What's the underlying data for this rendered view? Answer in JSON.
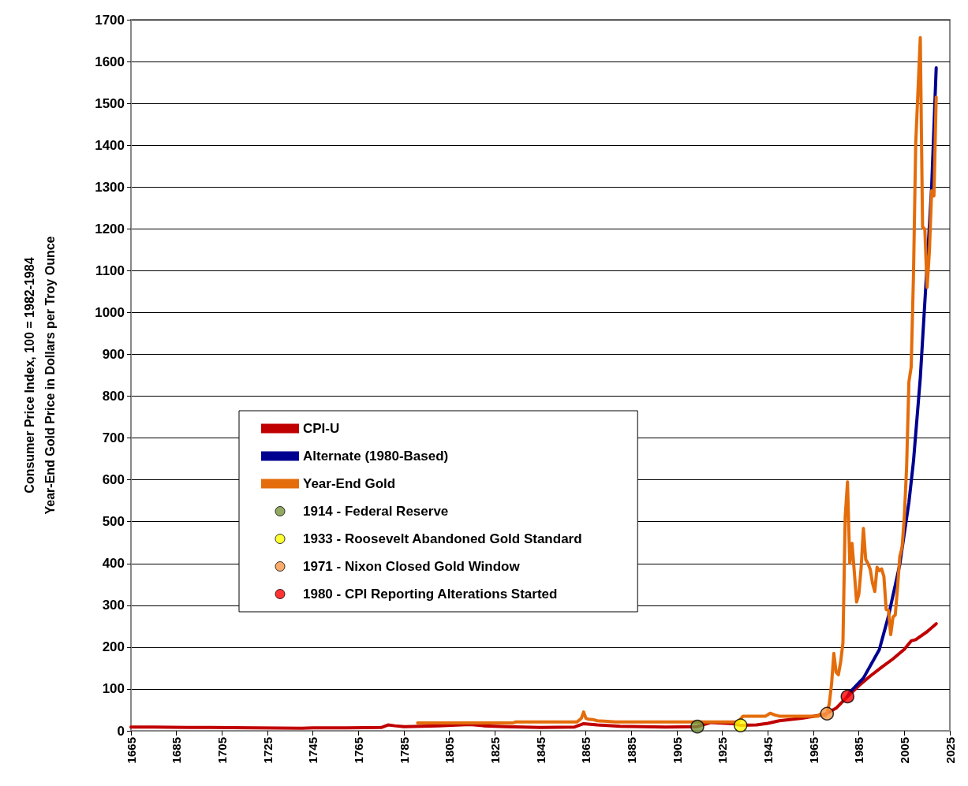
{
  "chart_data": {
    "type": "line",
    "ylabel": "Consumer Price Index, 100 = 1982-1984\nYear-End Gold Price in Dollars per Troy Ounce",
    "xlim": [
      1665,
      2025
    ],
    "xticks": [
      1665,
      1685,
      1705,
      1725,
      1745,
      1765,
      1785,
      1805,
      1825,
      1845,
      1865,
      1885,
      1905,
      1925,
      1945,
      1965,
      1985,
      2005,
      2025
    ],
    "ylim": [
      0,
      1700
    ],
    "yticks": [
      0,
      100,
      200,
      300,
      400,
      500,
      600,
      700,
      800,
      900,
      1000,
      1100,
      1200,
      1300,
      1400,
      1500,
      1600,
      1700
    ],
    "grid": "y",
    "legend": "center",
    "line_style": "solid",
    "series": [
      {
        "name": "CPI-U",
        "color": "#c00000",
        "x": [
          1665,
          1675,
          1690,
          1700,
          1720,
          1740,
          1745,
          1760,
          1775,
          1778,
          1781,
          1785,
          1800,
          1814,
          1820,
          1830,
          1845,
          1860,
          1864,
          1870,
          1880,
          1900,
          1914,
          1920,
          1930,
          1933,
          1940,
          1945,
          1950,
          1960,
          1970,
          1975,
          1980,
          1985,
          1990,
          1995,
          2000,
          2005,
          2008,
          2010,
          2015,
          2019
        ],
        "values": [
          9,
          9,
          8,
          8,
          7,
          6,
          7,
          7,
          8,
          14,
          12,
          10,
          12,
          15,
          12,
          10,
          8,
          9,
          17,
          14,
          11,
          9,
          10,
          20,
          17,
          13,
          14,
          18,
          24,
          30,
          39,
          54,
          82,
          108,
          131,
          152,
          172,
          195,
          215,
          218,
          237,
          256
        ]
      },
      {
        "name": "Alternate (1980-Based)",
        "color": "#000090",
        "x": [
          1980,
          1981,
          1987,
          1994,
          1998,
          2003,
          2007,
          2009,
          2012,
          2015,
          2017,
          2019
        ],
        "values": [
          82,
          92,
          126,
          194,
          274,
          398,
          546,
          644,
          843,
          1115,
          1300,
          1585
        ]
      },
      {
        "name": "Year-End Gold",
        "color": "#e46c0a",
        "x": [
          1791,
          1833,
          1834,
          1861,
          1862,
          1863,
          1864,
          1865,
          1866,
          1868,
          1870,
          1873,
          1878,
          1932,
          1934,
          1944,
          1946,
          1948,
          1950,
          1967,
          1968,
          1970,
          1971,
          1972,
          1973,
          1974,
          1975,
          1976,
          1977,
          1978,
          1979,
          1980,
          1981,
          1982,
          1983,
          1984,
          1985,
          1986,
          1987,
          1988,
          1989,
          1990,
          1991,
          1992,
          1993,
          1994,
          1995,
          1996,
          1997,
          1998,
          1999,
          2000,
          2001,
          2002,
          2003,
          2004,
          2005,
          2006,
          2007,
          2008,
          2009,
          2010,
          2011,
          2012,
          2013,
          2014,
          2015,
          2016,
          2017,
          2018,
          2019
        ],
        "values": [
          19,
          19,
          21,
          21,
          25,
          30,
          45,
          30,
          28,
          27,
          24,
          23,
          21,
          21,
          35,
          35,
          42,
          38,
          35,
          35,
          40,
          36,
          41,
          65,
          112,
          185,
          140,
          134,
          165,
          210,
          512,
          595,
          400,
          448,
          380,
          308,
          327,
          390,
          484,
          410,
          400,
          386,
          353,
          333,
          391,
          383,
          387,
          369,
          290,
          288,
          230,
          272,
          277,
          342,
          417,
          438,
          513,
          632,
          834,
          870,
          1087,
          1405,
          1531,
          1657,
          1205,
          1199,
          1060,
          1146,
          1291,
          1279,
          1515
        ]
      },
      {
        "type": "scatter",
        "name": "1914 - Federal Reserve",
        "color": "#77933c",
        "x": [
          1914
        ],
        "values": [
          10
        ],
        "marker": "circle"
      },
      {
        "type": "scatter",
        "name": "1933 - Roosevelt Abandoned Gold Standard",
        "color": "#ffff00",
        "x": [
          1933
        ],
        "values": [
          13
        ],
        "marker": "circle"
      },
      {
        "type": "scatter",
        "name": "1971 - Nixon Closed Gold Window",
        "color": "#f79646",
        "x": [
          1971
        ],
        "values": [
          41
        ],
        "marker": "circle"
      },
      {
        "type": "scatter",
        "name": "1980 - CPI Reporting Alterations Started",
        "color": "#ff0000",
        "x": [
          1980
        ],
        "values": [
          82
        ],
        "marker": "circle"
      }
    ]
  }
}
